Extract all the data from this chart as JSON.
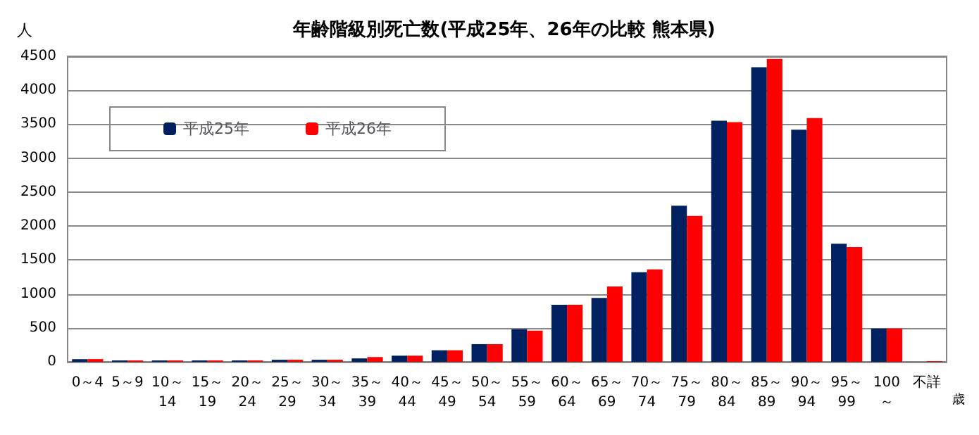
{
  "chart_data": {
    "type": "bar",
    "title": "年齢階級別死亡数(平成25年、26年の比較 熊本県)",
    "ylabel": "人",
    "annotations": [
      "歳"
    ],
    "categories": [
      "0～4",
      "5～9",
      "10～\n14",
      "15～\n19",
      "20～\n24",
      "25～\n29",
      "30～\n34",
      "35～\n39",
      "40～\n44",
      "45～\n49",
      "50～\n54",
      "55～\n59",
      "60～\n64",
      "65～\n69",
      "70～\n74",
      "75～\n79",
      "80～\n84",
      "85～\n89",
      "90～\n94",
      "95～\n99",
      "100\n～",
      "不詳"
    ],
    "series": [
      {
        "name": "平成25年",
        "color": "#002060",
        "values": [
          40,
          20,
          20,
          20,
          20,
          30,
          30,
          50,
          90,
          170,
          260,
          480,
          840,
          940,
          1320,
          2300,
          3550,
          4340,
          3420,
          1740,
          490,
          0
        ]
      },
      {
        "name": "平成26年",
        "color": "#ff0000",
        "values": [
          40,
          20,
          20,
          20,
          20,
          30,
          30,
          70,
          90,
          170,
          260,
          460,
          840,
          1110,
          1360,
          2150,
          3530,
          4460,
          3590,
          1690,
          490,
          10
        ]
      }
    ],
    "ylim": [
      0,
      4500
    ],
    "yticks": [
      0,
      500,
      1000,
      1500,
      2000,
      2500,
      3000,
      3500,
      4000,
      4500
    ],
    "grid": "y",
    "legend": "top left"
  }
}
